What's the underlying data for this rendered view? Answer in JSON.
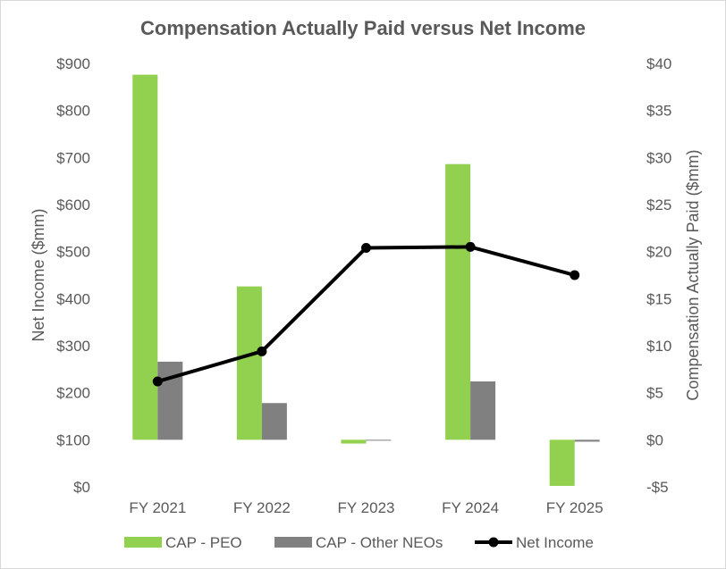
{
  "chart_data": {
    "type": "bar",
    "title": "Compensation Actually Paid versus Net Income",
    "categories": [
      "FY 2021",
      "FY 2022",
      "FY 2023",
      "FY 2024",
      "FY 2025"
    ],
    "left_axis": {
      "label": "Net Income ($mm)",
      "range": [
        0,
        900
      ],
      "ticks": [
        0,
        100,
        200,
        300,
        400,
        500,
        600,
        700,
        800,
        900
      ],
      "tick_labels": [
        "$0",
        "$100",
        "$200",
        "$300",
        "$400",
        "$500",
        "$600",
        "$700",
        "$800",
        "$900"
      ]
    },
    "right_axis": {
      "label": "Compensation Actually Paid ($mm)",
      "range": [
        -5,
        40
      ],
      "ticks": [
        -5,
        0,
        5,
        10,
        15,
        20,
        25,
        30,
        35,
        40
      ],
      "tick_labels": [
        "-$5",
        "$0",
        "$5",
        "$10",
        "$15",
        "$20",
        "$25",
        "$30",
        "$35",
        "$40"
      ]
    },
    "series": [
      {
        "name": "CAP - PEO",
        "type": "bar",
        "axis": "right",
        "color": "#92d050",
        "values": [
          38.8,
          16.3,
          -0.4,
          29.3,
          -4.9
        ]
      },
      {
        "name": "CAP - Other NEOs",
        "type": "bar",
        "axis": "right",
        "color": "#808080",
        "values": [
          8.3,
          3.9,
          -0.05,
          6.2,
          -0.2
        ]
      },
      {
        "name": "Net Income",
        "type": "line",
        "axis": "left",
        "color": "#000000",
        "values": [
          224,
          288,
          508,
          510,
          450
        ]
      }
    ],
    "legend": [
      "CAP - PEO",
      "CAP - Other NEOs",
      "Net Income"
    ],
    "legend_position": "bottom",
    "grid": false
  }
}
